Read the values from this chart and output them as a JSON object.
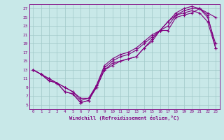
{
  "xlabel": "Windchill (Refroidissement éolien,°C)",
  "background_color": "#c8e8e8",
  "line_color": "#800080",
  "grid_color": "#a0c8c8",
  "xlim": [
    -0.5,
    23.5
  ],
  "ylim": [
    4,
    28
  ],
  "xticks": [
    0,
    1,
    2,
    3,
    4,
    5,
    6,
    7,
    8,
    9,
    10,
    11,
    12,
    13,
    14,
    15,
    16,
    17,
    18,
    19,
    20,
    21,
    22,
    23
  ],
  "yticks": [
    5,
    7,
    9,
    11,
    13,
    15,
    17,
    19,
    21,
    23,
    25,
    27
  ],
  "series1_x": [
    0,
    1,
    2,
    3,
    4,
    5,
    6,
    7,
    8,
    9,
    10,
    11,
    12,
    13,
    14,
    15,
    16,
    17,
    18,
    19,
    20,
    21,
    22,
    23
  ],
  "series1_y": [
    13,
    12,
    10.5,
    10,
    8,
    7.5,
    5.5,
    6,
    9,
    13,
    14.5,
    15,
    15.5,
    16,
    18,
    19.5,
    22,
    22,
    25,
    25.5,
    26,
    27,
    26,
    25
  ],
  "series2_x": [
    0,
    1,
    2,
    3,
    4,
    5,
    6,
    7,
    8,
    9,
    10,
    11,
    12,
    13,
    14,
    15,
    16,
    17,
    18,
    19,
    20,
    21,
    22,
    23
  ],
  "series2_y": [
    13,
    12,
    10.5,
    10,
    8,
    7.5,
    5.5,
    6,
    9.5,
    14,
    15.5,
    16.5,
    17,
    18,
    19.5,
    21,
    22,
    24,
    25.5,
    26.5,
    27,
    27,
    25,
    19
  ],
  "series3_x": [
    0,
    1,
    2,
    3,
    4,
    5,
    6,
    7,
    8,
    9,
    10,
    11,
    12,
    13,
    14,
    15,
    16,
    17,
    18,
    19,
    20,
    21,
    22,
    23
  ],
  "series3_y": [
    13,
    12,
    11,
    10,
    9,
    8,
    6,
    6.5,
    9,
    13,
    14,
    15,
    15.5,
    16,
    18,
    20,
    22,
    23,
    25.5,
    26,
    26.5,
    26,
    24,
    18
  ],
  "series4_x": [
    0,
    1,
    2,
    3,
    4,
    5,
    6,
    7,
    8,
    9,
    10,
    11,
    12,
    13,
    14,
    15,
    16,
    17,
    18,
    19,
    20,
    21,
    22,
    23
  ],
  "series4_y": [
    13,
    12,
    11,
    10,
    9,
    8,
    6.5,
    6.5,
    9.5,
    13.5,
    15,
    16,
    16.5,
    17.5,
    19,
    20.5,
    22,
    24,
    26,
    27,
    27.5,
    27,
    25.5,
    18
  ]
}
